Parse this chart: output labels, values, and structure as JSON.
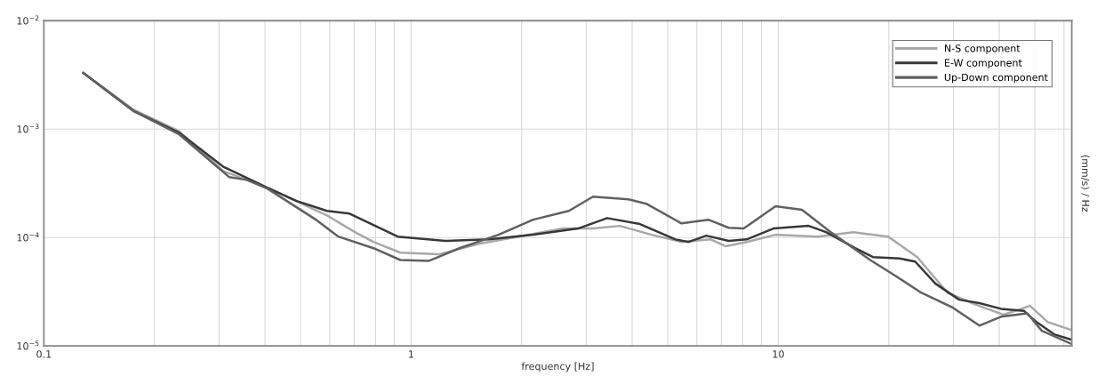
{
  "chart_data": {
    "type": "line",
    "xlabel": "frequency [Hz]",
    "y2label": "(mm/s) / Hz",
    "log": "xy",
    "grid": true,
    "legend": "top right",
    "xlim": [
      0.1,
      63
    ],
    "ylim": [
      1e-05,
      0.01
    ],
    "xticks": [
      0.1,
      {
        "value": 0.2,
        "label": null
      },
      {
        "value": 0.3,
        "label": null
      },
      {
        "value": 0.4,
        "label": null
      },
      {
        "value": 0.5,
        "label": null
      },
      {
        "value": 0.6,
        "label": null
      },
      {
        "value": 0.7,
        "label": null
      },
      {
        "value": 0.8,
        "label": null
      },
      {
        "value": 0.9,
        "label": null
      },
      1,
      {
        "value": 2,
        "label": null
      },
      {
        "value": 3,
        "label": null
      },
      {
        "value": 4,
        "label": null
      },
      {
        "value": 5,
        "label": null
      },
      {
        "value": 6,
        "label": null
      },
      {
        "value": 7,
        "label": null
      },
      {
        "value": 8,
        "label": null
      },
      {
        "value": 9,
        "label": null
      },
      10,
      {
        "value": 20,
        "label": null
      },
      {
        "value": 30,
        "label": null
      },
      {
        "value": 40,
        "label": null
      },
      {
        "value": 50,
        "label": null
      },
      {
        "value": 60,
        "label": null
      }
    ],
    "yticks": [
      {
        "value": 1e-05,
        "label": "10$^{−5}$"
      },
      {
        "value": 0.0001,
        "label": "10$^{−4}$"
      },
      {
        "value": 0.001,
        "label": "10$^{−3}$"
      },
      {
        "value": 0.01,
        "label": "10$^{−2}$"
      }
    ],
    "series": [
      {
        "name": "N-S component",
        "color": "#a8a8a8",
        "x": [
          0.128,
          0.176,
          0.233,
          0.308,
          0.406,
          0.59,
          0.71,
          0.79,
          0.935,
          1.19,
          1.54,
          1.96,
          2.59,
          3.13,
          3.7,
          4.52,
          5.45,
          6.55,
          7.2,
          8.2,
          9.83,
          12.8,
          16.0,
          19.9,
          23.9,
          28.9,
          34.2,
          41.1,
          48.5,
          54.2,
          63
        ],
        "values": [
          0.0033,
          0.0015,
          0.00096,
          0.00041,
          0.000288,
          0.00016,
          0.00011,
          9.1e-05,
          7.25e-05,
          7e-05,
          8.8e-05,
          0.000102,
          0.000121,
          0.000121,
          0.000128,
          0.000106,
          9.1e-05,
          9.6e-05,
          8.3e-05,
          9.1e-05,
          0.000106,
          0.000102,
          0.000112,
          0.000102,
          6.6e-05,
          3.1e-05,
          2.43e-05,
          1.94e-05,
          2.34e-05,
          1.66e-05,
          1.4e-05
        ]
      },
      {
        "name": "E-W component",
        "color": "#383838",
        "x": [
          0.128,
          0.176,
          0.233,
          0.308,
          0.406,
          0.488,
          0.59,
          0.68,
          0.92,
          1.24,
          1.63,
          2.15,
          2.85,
          3.42,
          4.2,
          5.25,
          5.7,
          6.37,
          7.33,
          8.2,
          9.7,
          12.1,
          13.5,
          16.2,
          18.1,
          21.4,
          23.6,
          26.8,
          31.1,
          35.3,
          40.4,
          46.7,
          50.5,
          56.4,
          63
        ],
        "values": [
          0.0033,
          0.00146,
          0.00093,
          0.00045,
          0.000288,
          0.000217,
          0.000176,
          0.000166,
          0.000102,
          9.3e-05,
          9.6e-05,
          0.000106,
          0.000121,
          0.000151,
          0.000133,
          9.6e-05,
          9.1e-05,
          0.000104,
          9.3e-05,
          9.6e-05,
          0.000121,
          0.000128,
          0.000112,
          7.98e-05,
          6.6e-05,
          6.4e-05,
          6e-05,
          3.75e-05,
          2.67e-05,
          2.48e-05,
          2.2e-05,
          2.1e-05,
          1.66e-05,
          1.28e-05,
          1.14e-05
        ]
      },
      {
        "name": "Up-Down component",
        "color": "#606060",
        "x": [
          0.128,
          0.176,
          0.233,
          0.32,
          0.357,
          0.406,
          0.546,
          0.634,
          0.79,
          0.935,
          1.12,
          1.36,
          1.73,
          2.15,
          2.69,
          3.13,
          3.91,
          4.37,
          5.45,
          6.45,
          7.33,
          8.05,
          9.83,
          11.6,
          14.0,
          17.8,
          20.7,
          24.5,
          29.9,
          35.3,
          40.4,
          47.7,
          52.2,
          63
        ],
        "values": [
          0.0033,
          0.00146,
          0.0009,
          0.00036,
          0.00034,
          0.000283,
          0.000149,
          0.000102,
          7.97e-05,
          6.2e-05,
          6.1e-05,
          8e-05,
          0.000106,
          0.000146,
          0.000176,
          0.000238,
          0.000225,
          0.000205,
          0.000135,
          0.000146,
          0.000123,
          0.000121,
          0.000194,
          0.00018,
          0.00011,
          6.2e-05,
          4.5e-05,
          3.1e-05,
          2.25e-05,
          1.54e-05,
          1.86e-05,
          2e-05,
          1.38e-05,
          1.04e-05
        ]
      }
    ]
  }
}
